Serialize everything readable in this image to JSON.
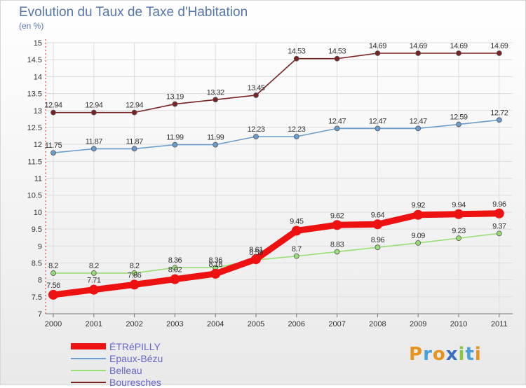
{
  "brand": {
    "text": "Proxiti",
    "colors": [
      "#e8931e",
      "#4aa0d8",
      "#e8931e",
      "#3a6fc0",
      "#8bc63f",
      "#4aa0d8",
      "#e8931e"
    ]
  },
  "chart_data": {
    "type": "line",
    "title": "Evolution du Taux de Taxe d'Habitation",
    "subtitle": "(en %)",
    "xlabel": "",
    "ylabel": "",
    "ylim": [
      7,
      15
    ],
    "y_ticks": [
      "7",
      "7.5",
      "8",
      "8.5",
      "9",
      "9.5",
      "10",
      "10.5",
      "11",
      "11.5",
      "12",
      "12.5",
      "13",
      "13.5",
      "14",
      "14.5",
      "15"
    ],
    "categories": [
      "2000",
      "2001",
      "2002",
      "2003",
      "2004",
      "2005",
      "2006",
      "2007",
      "2008",
      "2009",
      "2010",
      "2011"
    ],
    "grid": true,
    "legend_position": "bottom-left",
    "series": [
      {
        "name": "Bouresches",
        "color": "#7a2323",
        "values": [
          12.94,
          12.94,
          12.94,
          13.19,
          13.32,
          13.45,
          14.53,
          14.53,
          14.69,
          14.69,
          14.69,
          14.69
        ],
        "labels": [
          "12.94",
          "12.94",
          "12.94",
          "13.19",
          "13.32",
          "13.45",
          "14.53",
          "14.53",
          "14.69",
          "14.69",
          "14.69",
          "14.69"
        ]
      },
      {
        "name": "Epaux-Bézu",
        "color": "#6a9ccc",
        "values": [
          11.75,
          11.87,
          11.87,
          11.99,
          11.99,
          12.23,
          12.23,
          12.47,
          12.47,
          12.47,
          12.59,
          12.72
        ],
        "labels": [
          "11.75",
          "11.87",
          "11.87",
          "11.99",
          "11.99",
          "12.23",
          "12.23",
          "12.47",
          "12.47",
          "12.47",
          "12.59",
          "12.72"
        ]
      },
      {
        "name": "Belleau",
        "color": "#99dd77",
        "values": [
          8.2,
          8.2,
          8.2,
          8.36,
          8.36,
          8.59,
          8.7,
          8.83,
          8.96,
          9.09,
          9.23,
          9.37
        ],
        "labels": [
          "8.2",
          "8.2",
          "8.2",
          "8.36",
          "8.36",
          "8.59",
          "8.7",
          "8.83",
          "8.96",
          "9.09",
          "9.23",
          "9.37"
        ]
      },
      {
        "name": "ÉTRéPILLY",
        "color": "#ee1111",
        "values": [
          7.56,
          7.71,
          7.86,
          8.02,
          8.18,
          8.61,
          9.45,
          9.62,
          9.64,
          9.92,
          9.94,
          9.96
        ],
        "labels": [
          "7.56",
          "7.71",
          "7.86",
          "8.02",
          "8.18",
          "8.61",
          "9.45",
          "9.62",
          "9.64",
          "9.92",
          "9.94",
          "9.96"
        ]
      }
    ],
    "legend_order": [
      "ÉTRéPILLY",
      "Epaux-Bézu",
      "Belleau",
      "Bouresches"
    ]
  }
}
